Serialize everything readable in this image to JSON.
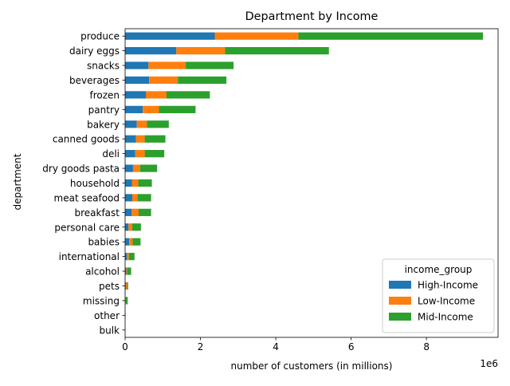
{
  "chart_data": {
    "type": "bar",
    "orientation": "horizontal",
    "stacked": true,
    "title": "Department by Income",
    "xlabel": "number of customers (in millions)",
    "ylabel": "department",
    "x_offset_label": "1e6",
    "xlim": [
      0,
      9.9
    ],
    "xticks": [
      0,
      2,
      4,
      6,
      8
    ],
    "xtick_labels": [
      "0",
      "2",
      "4",
      "6",
      "8"
    ],
    "grid": false,
    "categories": [
      "produce",
      "dairy eggs",
      "snacks",
      "beverages",
      "frozen",
      "pantry",
      "bakery",
      "canned goods",
      "deli",
      "dry goods pasta",
      "household",
      "meat seafood",
      "breakfast",
      "personal care",
      "babies",
      "international",
      "alcohol",
      "pets",
      "missing",
      "other",
      "bulk"
    ],
    "series": [
      {
        "name": "High-Income",
        "color": "#1f77b4",
        "values": [
          2.38,
          1.36,
          0.62,
          0.64,
          0.55,
          0.47,
          0.31,
          0.29,
          0.27,
          0.21,
          0.18,
          0.19,
          0.17,
          0.09,
          0.11,
          0.05,
          0.03,
          0.02,
          0.01,
          0.0,
          0.0
        ]
      },
      {
        "name": "Low-Income",
        "color": "#ff7f0e",
        "values": [
          2.22,
          1.29,
          0.99,
          0.76,
          0.55,
          0.43,
          0.27,
          0.23,
          0.25,
          0.19,
          0.17,
          0.14,
          0.19,
          0.1,
          0.09,
          0.05,
          0.02,
          0.03,
          0.01,
          0.0,
          0.0
        ]
      },
      {
        "name": "Mid-Income",
        "color": "#2ca02c",
        "values": [
          4.9,
          2.76,
          1.27,
          1.29,
          1.15,
          0.97,
          0.58,
          0.55,
          0.52,
          0.45,
          0.36,
          0.36,
          0.33,
          0.23,
          0.21,
          0.15,
          0.11,
          0.03,
          0.05,
          0.01,
          0.0
        ]
      }
    ],
    "legend": {
      "title": "income_group",
      "position": "bottom-right"
    }
  }
}
